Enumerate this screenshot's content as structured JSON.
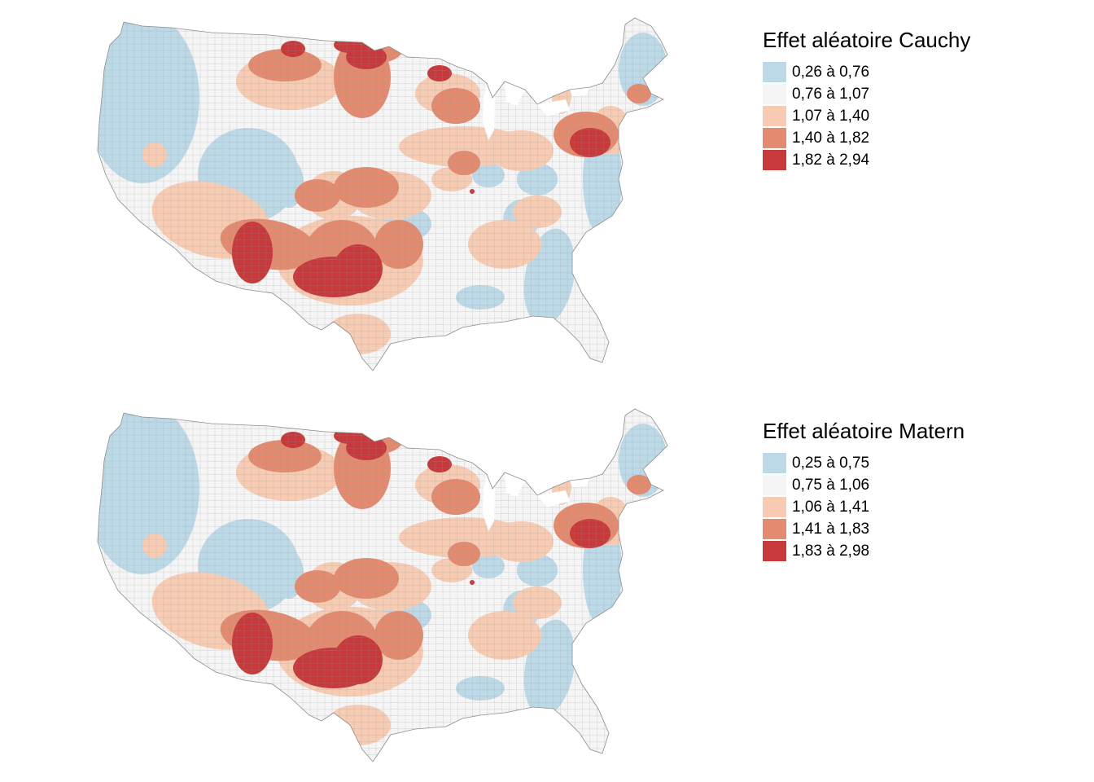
{
  "maps": [
    {
      "id": "cauchy",
      "title": "Effet aléatoire Cauchy",
      "legend": [
        {
          "label": "0,26 à 0,76",
          "color": "#bcd9e8"
        },
        {
          "label": "0,76 à 1,07",
          "color": "#f5f5f5"
        },
        {
          "label": "1,07 à 1,40",
          "color": "#f7ccb3"
        },
        {
          "label": "1,40 à 1,82",
          "color": "#e48a6e"
        },
        {
          "label": "1,82 à 2,94",
          "color": "#c8393c"
        }
      ]
    },
    {
      "id": "matern",
      "title": "Effet aléatoire Matern",
      "legend": [
        {
          "label": "0,25 à 0,75",
          "color": "#bcd9e8"
        },
        {
          "label": "0,75 à 1,06",
          "color": "#f5f5f5"
        },
        {
          "label": "1,06 à 1,41",
          "color": "#f7ccb3"
        },
        {
          "label": "1,41 à 1,83",
          "color": "#e48a6e"
        },
        {
          "label": "1,83 à 2,98",
          "color": "#c8393c"
        }
      ]
    }
  ]
}
